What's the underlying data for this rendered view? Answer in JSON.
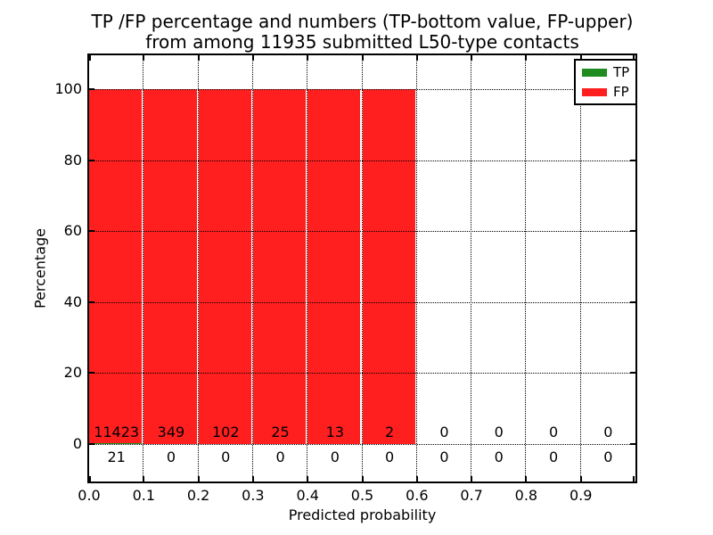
{
  "title": {
    "line1": "TP /FP percentage and numbers (TP-bottom value, FP-upper)",
    "line2": "from among 11935 submitted L50-type contacts"
  },
  "axes": {
    "xlabel": "Predicted probability",
    "ylabel": "Percentage",
    "ytick_values": [
      0,
      20,
      40,
      60,
      80,
      100
    ],
    "ytick_labels": [
      "0",
      "20",
      "40",
      "60",
      "80",
      "100"
    ],
    "xtick_labels": [
      "0.0",
      "0.1",
      "0.2",
      "0.3",
      "0.4",
      "0.5",
      "0.6",
      "0.7",
      "0.8",
      "0.9"
    ]
  },
  "legend": {
    "position": "upper right",
    "items": [
      {
        "label": "TP",
        "color": "#1e8c1e"
      },
      {
        "label": "FP",
        "color": "#ff1f1f"
      }
    ]
  },
  "colors": {
    "tp_green": "#1e8c1e",
    "fp_red": "#ff1f1f",
    "grid": "#000000",
    "background": "#ffffff"
  },
  "chart_data": {
    "type": "bar",
    "stacked": true,
    "title": "TP /FP percentage and numbers (TP-bottom value, FP-upper) from among 11935 submitted L50-type contacts",
    "xlabel": "Predicted probability",
    "ylabel": "Percentage",
    "xlim": [
      0.0,
      1.0
    ],
    "ylim": [
      -10.5,
      109.5
    ],
    "grid": true,
    "legend_position": "upper right",
    "total_submitted": 11935,
    "bins": [
      [
        0.0,
        0.1
      ],
      [
        0.1,
        0.2
      ],
      [
        0.2,
        0.3
      ],
      [
        0.3,
        0.4
      ],
      [
        0.4,
        0.5
      ],
      [
        0.5,
        0.6
      ],
      [
        0.6,
        0.7
      ],
      [
        0.7,
        0.8
      ],
      [
        0.8,
        0.9
      ],
      [
        0.9,
        1.0
      ]
    ],
    "bin_centers": [
      0.05,
      0.15,
      0.25,
      0.35,
      0.45,
      0.55,
      0.65,
      0.75,
      0.85,
      0.95
    ],
    "series": [
      {
        "name": "TP",
        "color": "#1e8c1e",
        "counts": [
          21,
          0,
          0,
          0,
          0,
          0,
          0,
          0,
          0,
          0
        ],
        "percent": [
          0.18,
          0,
          0,
          0,
          0,
          0,
          0,
          0,
          0,
          0
        ]
      },
      {
        "name": "FP",
        "color": "#ff1f1f",
        "counts": [
          11423,
          349,
          102,
          25,
          13,
          2,
          0,
          0,
          0,
          0
        ],
        "percent": [
          99.82,
          100,
          100,
          100,
          100,
          100,
          0,
          0,
          0,
          0
        ]
      }
    ]
  }
}
